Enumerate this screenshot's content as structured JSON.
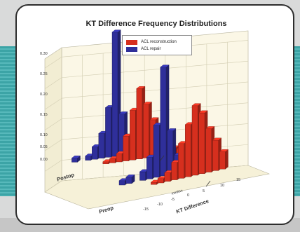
{
  "chart_data": {
    "type": "bar3d",
    "title": "KT Difference Frequency Distributions",
    "xlabel": "KT Difference",
    "rows": [
      "Postop",
      "Preop"
    ],
    "legend": [
      {
        "label": "ACL reconstruction",
        "color": "#d62f1e"
      },
      {
        "label": "ACL repair",
        "color": "#2f2f9a"
      }
    ],
    "y_ticks": [
      "0.30",
      "0.25",
      "0.20",
      "0.15",
      "0.10",
      "0.05",
      "0.00"
    ],
    "x_ticks": [
      "-15",
      "-10",
      "-5",
      "0",
      "5",
      "10",
      "15"
    ],
    "annotation": "median",
    "x_values": [
      -6,
      -5,
      -4,
      -3,
      -2,
      -1,
      0,
      1,
      2,
      3,
      4,
      5,
      6,
      7,
      8
    ],
    "series": [
      {
        "name": "ACL repair",
        "row": "Postop",
        "color": "#2f2f9a",
        "values": [
          0.01,
          0,
          0.01,
          0.03,
          0.06,
          0.12,
          0.3,
          0.1,
          0.03,
          0.01,
          0,
          0,
          0,
          0,
          0
        ]
      },
      {
        "name": "ACL reconstruction",
        "row": "Postop",
        "color": "#d62f1e",
        "values": [
          0,
          0,
          0,
          0.005,
          0.01,
          0.02,
          0.06,
          0.12,
          0.17,
          0.13,
          0.09,
          0.05,
          0.03,
          0.015,
          0.01
        ]
      },
      {
        "name": "ACL repair",
        "row": "Preop",
        "color": "#2f2f9a",
        "values": [
          0,
          0.01,
          0.015,
          0,
          0.02,
          0.05,
          0.12,
          0.25,
          0.1,
          0.04,
          0.01,
          0.005,
          0,
          0,
          0
        ]
      },
      {
        "name": "ACL reconstruction",
        "row": "Preop",
        "color": "#d62f1e",
        "values": [
          0,
          0,
          0,
          0,
          0.005,
          0.01,
          0.02,
          0.04,
          0.08,
          0.12,
          0.16,
          0.14,
          0.1,
          0.07,
          0.04
        ]
      }
    ],
    "ylim": [
      0,
      0.3
    ],
    "grid": true
  }
}
